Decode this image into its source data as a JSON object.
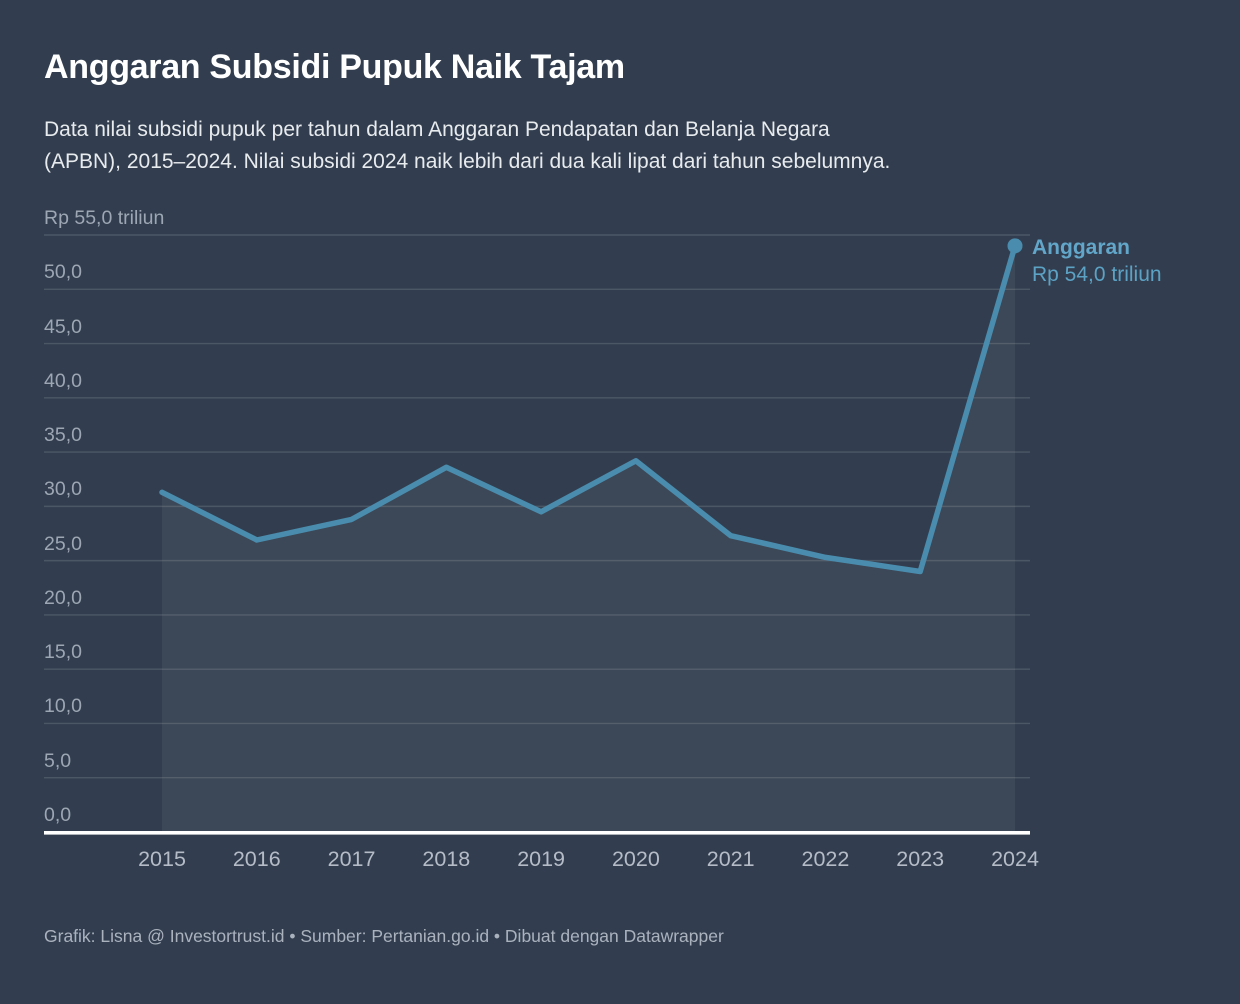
{
  "header": {
    "title": "Anggaran Subsidi Pupuk Naik Tajam",
    "subtitle_lines": [
      "Data nilai subsidi pupuk per tahun dalam Anggaran Pendapatan dan Belanja Negara",
      "(APBN), 2015–2024. Nilai subsidi 2024 naik lebih dari dua kali lipat dari tahun sebelumnya."
    ]
  },
  "chart_data": {
    "type": "line",
    "title": "Anggaran Subsidi Pupuk Naik Tajam",
    "categories": [
      "2015",
      "2016",
      "2017",
      "2018",
      "2019",
      "2020",
      "2021",
      "2022",
      "2023",
      "2024"
    ],
    "series": [
      {
        "name": "Anggaran",
        "values": [
          31.3,
          26.9,
          28.8,
          33.6,
          29.5,
          34.2,
          27.3,
          25.3,
          24.0,
          54.0
        ]
      }
    ],
    "unit": "Rp triliun",
    "ylim": [
      0,
      55
    ],
    "grid": "horizontal",
    "y_ticks": [
      {
        "value": 55,
        "label": "Rp 55,0 triliun"
      },
      {
        "value": 50,
        "label": "50,0"
      },
      {
        "value": 45,
        "label": "45,0"
      },
      {
        "value": 40,
        "label": "40,0"
      },
      {
        "value": 35,
        "label": "35,0"
      },
      {
        "value": 30,
        "label": "30,0"
      },
      {
        "value": 25,
        "label": "25,0"
      },
      {
        "value": 20,
        "label": "20,0"
      },
      {
        "value": 15,
        "label": "15,0"
      },
      {
        "value": 10,
        "label": "10,0"
      },
      {
        "value": 5,
        "label": "5,0"
      },
      {
        "value": 0,
        "label": "0,0"
      }
    ],
    "annotation": {
      "label": "Anggaran",
      "value_label": "Rp 54,0 triliun"
    },
    "legend_position": "end-of-line",
    "colors": {
      "background": "#323e4f",
      "line": "#4a8cad",
      "endpoint_dot": "#4a8cad",
      "area_fill": "rgba(255,255,255,0.05)",
      "gridline": "rgba(255,255,255,0.13)",
      "axis": "#ffffff",
      "annotation_name": "#62a7ca",
      "annotation_value": "#5ca2c4"
    }
  },
  "footer": {
    "credit": "Grafik: Lisna @ Investortrust.id • Sumber: Pertanian.go.id • Dibuat dengan Datawrapper"
  }
}
